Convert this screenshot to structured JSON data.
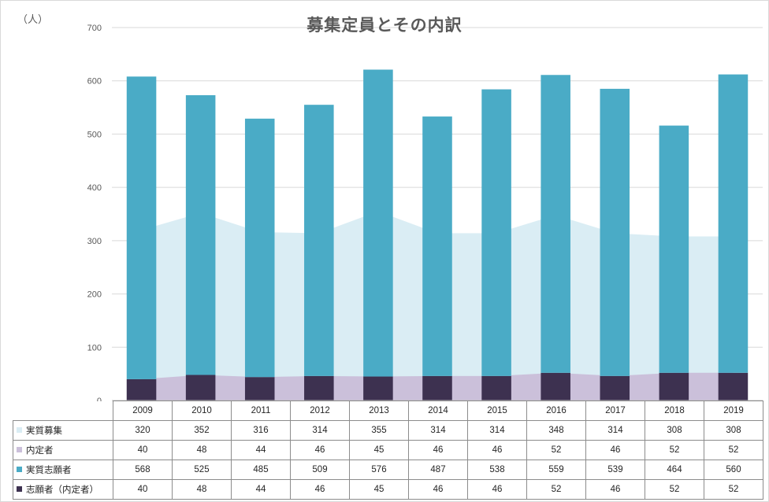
{
  "chart_data": {
    "type": "bar",
    "title": "募集定員とその内訳",
    "ylabel": "（人）",
    "ylim": [
      0,
      700
    ],
    "yticks": [
      0,
      100,
      200,
      300,
      400,
      500,
      600,
      700
    ],
    "grid": true,
    "legend_position": "data-table-left",
    "categories": [
      "2009",
      "2010",
      "2011",
      "2012",
      "2013",
      "2014",
      "2015",
      "2016",
      "2017",
      "2018",
      "2019"
    ],
    "series": [
      {
        "name": "実質募集",
        "kind": "area",
        "color": "#daedf4",
        "values": [
          320,
          352,
          316,
          314,
          355,
          314,
          314,
          348,
          314,
          308,
          308
        ]
      },
      {
        "name": "内定者",
        "kind": "area",
        "color": "#cbc0da",
        "values": [
          40,
          48,
          44,
          46,
          45,
          46,
          46,
          52,
          46,
          52,
          52
        ]
      },
      {
        "name": "実質志願者",
        "kind": "stacked-bar",
        "color": "#4aabc6",
        "values": [
          568,
          525,
          485,
          509,
          576,
          487,
          538,
          559,
          539,
          464,
          560
        ]
      },
      {
        "name": "志願者（内定者）",
        "kind": "stacked-bar",
        "color": "#3d3150",
        "values": [
          40,
          48,
          44,
          46,
          45,
          46,
          46,
          52,
          46,
          52,
          52
        ]
      }
    ],
    "colors": {
      "gridline": "#d9d9d9",
      "axis": "#bfbfbf",
      "text": "#595959"
    }
  }
}
